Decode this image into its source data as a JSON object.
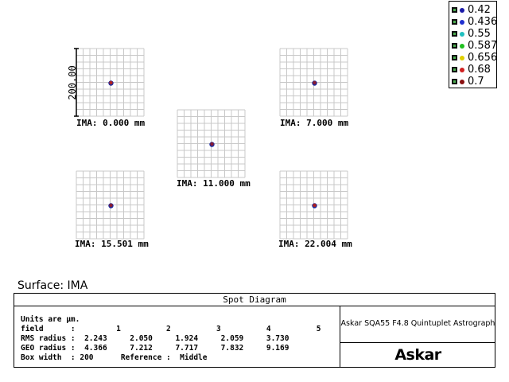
{
  "chart_data": {
    "type": "scatter",
    "title": "Spot Diagram",
    "scale_bar_label": "200.00",
    "fields": [
      {
        "label": "IMA: 0.000 mm",
        "spot_color": "#b02020"
      },
      {
        "label": "IMA: 7.000 mm",
        "spot_color": "#1a2aa0"
      },
      {
        "label": "IMA: 11.000 mm",
        "spot_color": "#1a2aa0"
      },
      {
        "label": "IMA: 15.501 mm",
        "spot_color": "#1a2aa0"
      },
      {
        "label": "IMA: 22.004 mm",
        "spot_color": "#b02020"
      }
    ],
    "legend": [
      {
        "label": "0.42",
        "color": "#1a1aa8"
      },
      {
        "label": "0.436",
        "color": "#2030d0"
      },
      {
        "label": "0.55",
        "color": "#20c0c0"
      },
      {
        "label": "0.587",
        "color": "#20c020"
      },
      {
        "label": "0.656",
        "color": "#e0d000"
      },
      {
        "label": "0.68",
        "color": "#d02020"
      },
      {
        "label": "0.7",
        "color": "#8a1010"
      }
    ]
  },
  "surface": "Surface: IMA",
  "info": {
    "units": "Units are µm.",
    "field_row": "field      :         1          2          3          4          5",
    "rms_row": "RMS radius :  2.243     2.050     1.924     2.059     3.730",
    "geo_row": "GEO radius :  4.366     7.212     7.717     7.832     9.169",
    "box_row": "Box width  : 200      Reference :  Middle",
    "description": "Askar SQA55 F4.8 Quintuplet Astrograph",
    "brand": "Askar"
  }
}
